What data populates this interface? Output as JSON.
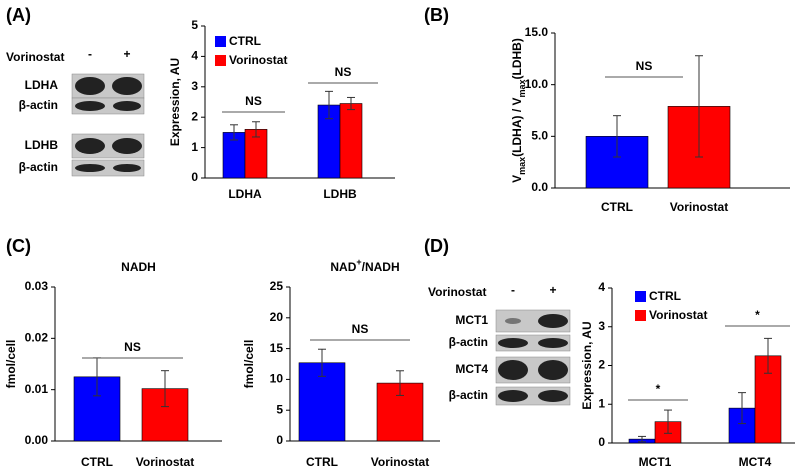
{
  "panel_labels": [
    "(A)",
    "(B)",
    "(C)",
    "(D)"
  ],
  "blots": {
    "A": {
      "treatment": "Vorinostat",
      "minus": "-",
      "plus": "+",
      "rows": [
        "LDHA",
        "β-actin",
        "LDHB",
        "β-actin"
      ]
    },
    "D": {
      "treatment": "Vorinostat",
      "minus": "-",
      "plus": "+",
      "rows": [
        "MCT1",
        "β-actin",
        "MCT4",
        "β-actin"
      ]
    }
  },
  "chart_data": [
    {
      "type": "bar",
      "ylabel": [
        "Expression, AU"
      ],
      "categories": [
        "LDHA",
        "LDHB"
      ],
      "series": [
        {
          "name": "CTRL",
          "color": "#0000ff",
          "values": [
            1.5,
            2.4
          ],
          "errors": [
            0.25,
            0.45
          ]
        },
        {
          "name": "Vorinostat",
          "color": "#ff0000",
          "values": [
            1.6,
            2.45
          ],
          "errors": [
            0.25,
            0.2
          ]
        }
      ],
      "ylim": [
        0,
        5
      ],
      "yticks": [
        0,
        1,
        2,
        3,
        4,
        5
      ],
      "legend": "upper left",
      "annotations": [
        "NS",
        "NS"
      ]
    },
    {
      "type": "bar",
      "ylabel": [
        "V",
        "max",
        "(LDHA) / V",
        "max",
        "(LDHB)"
      ],
      "categories": [
        "CTRL",
        "Vorinostat"
      ],
      "values": [
        5.0,
        7.9
      ],
      "errors": [
        2.0,
        4.9
      ],
      "colors": [
        "#0000ff",
        "#ff0000"
      ],
      "ylim": [
        0,
        15
      ],
      "yticks": [
        {
          "value": 0,
          "label": "0.0"
        },
        {
          "value": 5,
          "label": "5.0"
        },
        {
          "value": 10,
          "label": "10.0"
        },
        {
          "value": 15,
          "label": "15.0"
        }
      ],
      "annotations": [
        "NS"
      ]
    },
    {
      "type": "bar",
      "title": [
        "NADH"
      ],
      "ylabel": [
        "fmol/cell"
      ],
      "categories": [
        "CTRL",
        "Vorinostat"
      ],
      "values": [
        0.0125,
        0.0102
      ],
      "errors": [
        0.0037,
        0.0035
      ],
      "colors": [
        "#0000ff",
        "#ff0000"
      ],
      "ylim": [
        0,
        0.03
      ],
      "yticks": [
        {
          "value": 0,
          "label": "0.00"
        },
        {
          "value": 0.01,
          "label": "0.01"
        },
        {
          "value": 0.02,
          "label": "0.02"
        },
        {
          "value": 0.03,
          "label": "0.03"
        }
      ],
      "annotations": [
        "NS"
      ]
    },
    {
      "type": "bar",
      "title": [
        "NAD",
        "+",
        "/NADH"
      ],
      "ylabel": [
        "fmol/cell"
      ],
      "categories": [
        "CTRL",
        "Vorinostat"
      ],
      "values": [
        12.7,
        9.4
      ],
      "errors": [
        2.2,
        2.0
      ],
      "colors": [
        "#0000ff",
        "#ff0000"
      ],
      "ylim": [
        0,
        25
      ],
      "yticks": [
        0,
        5,
        10,
        15,
        20,
        25
      ],
      "annotations": [
        "NS"
      ]
    },
    {
      "type": "bar",
      "ylabel": [
        "Expression, AU"
      ],
      "categories": [
        "MCT1",
        "MCT4"
      ],
      "series": [
        {
          "name": "CTRL",
          "color": "#0000ff",
          "values": [
            0.1,
            0.9
          ],
          "errors": [
            0.07,
            0.4
          ]
        },
        {
          "name": "Vorinostat",
          "color": "#ff0000",
          "values": [
            0.55,
            2.25
          ],
          "errors": [
            0.3,
            0.45
          ]
        }
      ],
      "ylim": [
        0,
        4
      ],
      "yticks": [
        0,
        1,
        2,
        3,
        4
      ],
      "legend": "upper left",
      "annotations": [
        "*",
        "*"
      ]
    }
  ]
}
